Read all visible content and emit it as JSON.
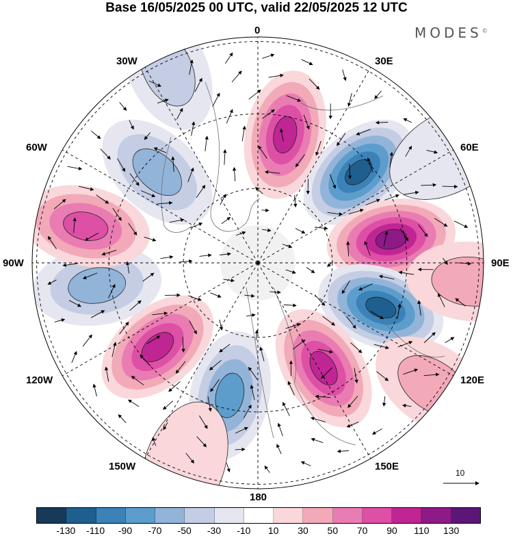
{
  "title": "Base 16/05/2025 00 UTC, valid 22/05/2025 12 UTC",
  "brand": {
    "name": "MODES",
    "mark": "©"
  },
  "longitude_labels": {
    "lon_0": "0",
    "lon_30e": "30E",
    "lon_60e": "60E",
    "lon_90e": "90E",
    "lon_120e": "120E",
    "lon_150e": "150E",
    "lon_180": "180",
    "lon_150w": "150W",
    "lon_120w": "120W",
    "lon_90w": "90W",
    "lon_60w": "60W",
    "lon_30w": "30W"
  },
  "vector_scale": {
    "label": "10"
  },
  "colorbar": {
    "colors": [
      "#173a59",
      "#1f5f8f",
      "#3b82b8",
      "#5c9dcc",
      "#93b4d9",
      "#c4cde3",
      "#e6e6f0",
      "#ffffff",
      "#f9d7da",
      "#f2a9b8",
      "#e97cb2",
      "#de4fa6",
      "#c02594",
      "#8e1a87",
      "#5c1678"
    ],
    "tick_labels": [
      "-130",
      "-110",
      "-90",
      "-70",
      "-50",
      "-30",
      "-10",
      "10",
      "30",
      "50",
      "70",
      "90",
      "110",
      "130"
    ]
  },
  "anomaly_cells": [
    {
      "lon": 12,
      "radius_frac": 0.58,
      "value": 95
    },
    {
      "lon": 48,
      "radius_frac": 0.6,
      "value": -120
    },
    {
      "lon": 80,
      "radius_frac": 0.6,
      "value": 125
    },
    {
      "lon": 110,
      "radius_frac": 0.58,
      "value": -125
    },
    {
      "lon": 148,
      "radius_frac": 0.55,
      "value": 100
    },
    {
      "lon": 192,
      "radius_frac": 0.6,
      "value": -70
    },
    {
      "lon": 230,
      "radius_frac": 0.58,
      "value": 90
    },
    {
      "lon": 262,
      "radius_frac": 0.72,
      "value": -60
    },
    {
      "lon": 282,
      "radius_frac": 0.78,
      "value": 75
    },
    {
      "lon": 312,
      "radius_frac": 0.6,
      "value": -55
    },
    {
      "lon": 60,
      "radius_frac": 0.98,
      "value": -20
    },
    {
      "lon": 95,
      "radius_frac": 0.95,
      "value": 30
    },
    {
      "lon": 125,
      "radius_frac": 0.95,
      "value": 30
    },
    {
      "lon": 200,
      "radius_frac": 0.95,
      "value": 25
    },
    {
      "lon": 335,
      "radius_frac": 0.95,
      "value": -30
    }
  ]
}
